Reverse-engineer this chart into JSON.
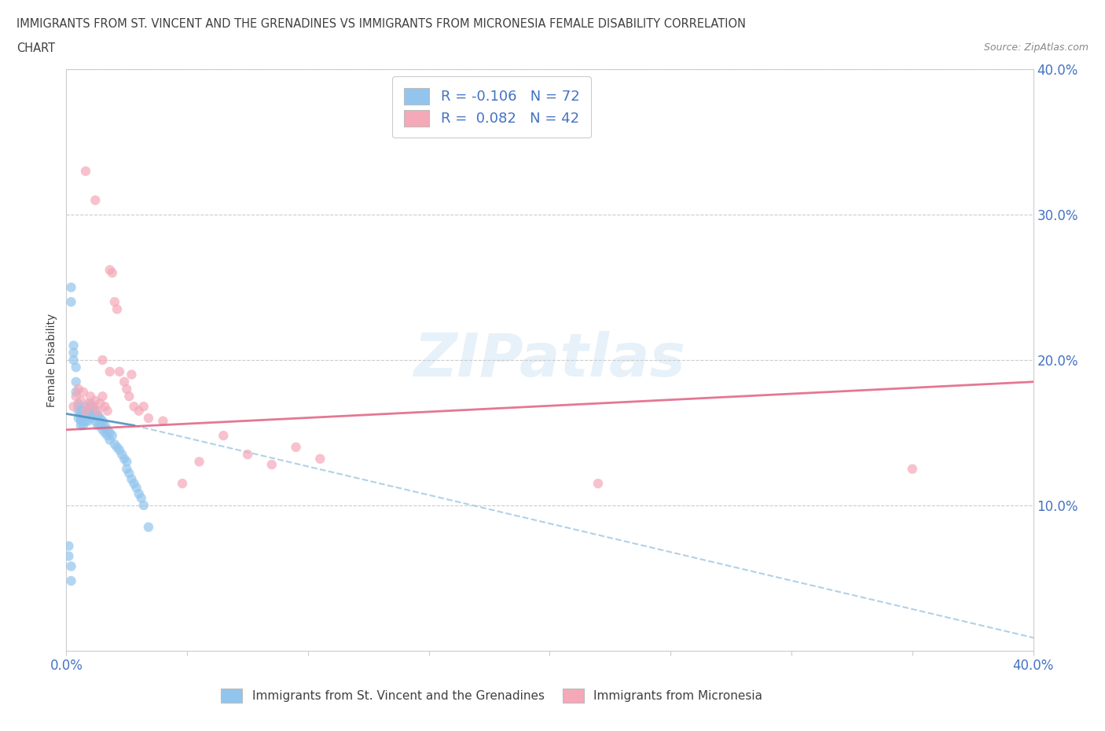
{
  "title_line1": "IMMIGRANTS FROM ST. VINCENT AND THE GRENADINES VS IMMIGRANTS FROM MICRONESIA FEMALE DISABILITY CORRELATION",
  "title_line2": "CHART",
  "source": "Source: ZipAtlas.com",
  "ylabel": "Female Disability",
  "legend1_label": "R = -0.106   N = 72",
  "legend2_label": "R =  0.082   N = 42",
  "legend1_bottom_label": "Immigrants from St. Vincent and the Grenadines",
  "legend2_bottom_label": "Immigrants from Micronesia",
  "color_blue": "#92C5ED",
  "color_pink": "#F4A8B8",
  "R1": -0.106,
  "N1": 72,
  "R2": 0.082,
  "N2": 42,
  "xmin": 0.0,
  "xmax": 0.4,
  "ymin": 0.0,
  "ymax": 0.4,
  "sv_x": [
    0.002,
    0.002,
    0.003,
    0.003,
    0.003,
    0.004,
    0.004,
    0.004,
    0.005,
    0.005,
    0.005,
    0.005,
    0.006,
    0.006,
    0.006,
    0.006,
    0.006,
    0.007,
    0.007,
    0.007,
    0.007,
    0.008,
    0.008,
    0.008,
    0.008,
    0.009,
    0.009,
    0.009,
    0.01,
    0.01,
    0.01,
    0.01,
    0.011,
    0.011,
    0.011,
    0.012,
    0.012,
    0.012,
    0.013,
    0.013,
    0.013,
    0.014,
    0.014,
    0.015,
    0.015,
    0.015,
    0.016,
    0.016,
    0.017,
    0.017,
    0.018,
    0.018,
    0.019,
    0.02,
    0.021,
    0.022,
    0.023,
    0.024,
    0.025,
    0.025,
    0.026,
    0.027,
    0.028,
    0.029,
    0.03,
    0.031,
    0.032,
    0.034,
    0.001,
    0.001,
    0.002,
    0.002
  ],
  "sv_y": [
    0.25,
    0.24,
    0.21,
    0.205,
    0.2,
    0.195,
    0.185,
    0.178,
    0.17,
    0.168,
    0.165,
    0.16,
    0.165,
    0.162,
    0.16,
    0.158,
    0.155,
    0.162,
    0.16,
    0.158,
    0.155,
    0.168,
    0.165,
    0.162,
    0.158,
    0.165,
    0.162,
    0.158,
    0.17,
    0.168,
    0.165,
    0.16,
    0.168,
    0.165,
    0.162,
    0.165,
    0.162,
    0.158,
    0.162,
    0.16,
    0.155,
    0.16,
    0.155,
    0.158,
    0.155,
    0.152,
    0.155,
    0.15,
    0.152,
    0.148,
    0.15,
    0.145,
    0.148,
    0.142,
    0.14,
    0.138,
    0.135,
    0.132,
    0.13,
    0.125,
    0.122,
    0.118,
    0.115,
    0.112,
    0.108,
    0.105,
    0.1,
    0.085,
    0.072,
    0.065,
    0.058,
    0.048
  ],
  "mc_x": [
    0.003,
    0.004,
    0.005,
    0.006,
    0.007,
    0.008,
    0.009,
    0.01,
    0.011,
    0.012,
    0.013,
    0.014,
    0.015,
    0.016,
    0.017,
    0.018,
    0.019,
    0.02,
    0.021,
    0.022,
    0.024,
    0.025,
    0.026,
    0.027,
    0.028,
    0.03,
    0.032,
    0.034,
    0.04,
    0.048,
    0.055,
    0.065,
    0.075,
    0.085,
    0.095,
    0.105,
    0.015,
    0.008,
    0.012,
    0.018,
    0.35,
    0.22
  ],
  "mc_y": [
    0.168,
    0.175,
    0.18,
    0.172,
    0.178,
    0.165,
    0.17,
    0.175,
    0.168,
    0.172,
    0.165,
    0.17,
    0.175,
    0.168,
    0.165,
    0.262,
    0.26,
    0.24,
    0.235,
    0.192,
    0.185,
    0.18,
    0.175,
    0.19,
    0.168,
    0.165,
    0.168,
    0.16,
    0.158,
    0.115,
    0.13,
    0.148,
    0.135,
    0.128,
    0.14,
    0.132,
    0.2,
    0.33,
    0.31,
    0.192,
    0.125,
    0.115
  ]
}
